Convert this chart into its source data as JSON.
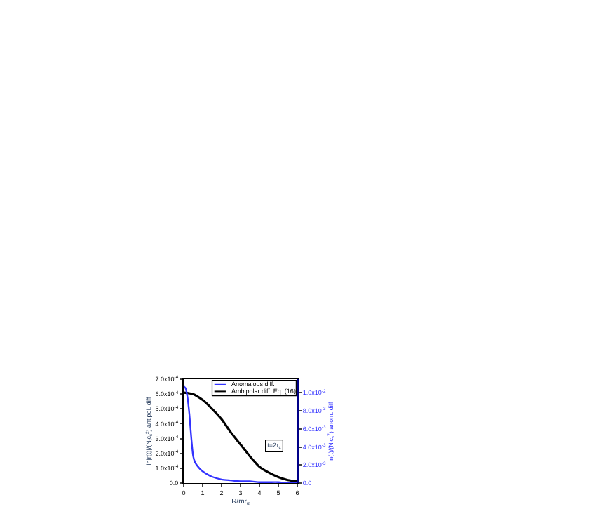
{
  "chart_data": {
    "type": "line",
    "xlabel": "R/mr$_{α}$",
    "ylabel": "ln|r(t)|/(N$_{t}$c$_{s}$$^{2}$) antipol. diff",
    "y2label": "n(t)/(N$_{t}$c$_{s}$$^{2}$) anom. diff",
    "x": [
      0,
      0.1,
      0.2,
      0.3,
      0.4,
      0.5,
      0.6,
      0.8,
      1.0,
      1.3,
      1.5,
      2,
      2.5,
      3,
      3.5,
      4,
      4.5,
      5,
      5.5,
      6
    ],
    "series": [
      {
        "name": "Anomalous diff.",
        "color": "#3333ff",
        "axis": "y2",
        "values": [
          0.0107,
          0.0105,
          0.0095,
          0.0076,
          0.005,
          0.003,
          0.0023,
          0.0017,
          0.0013,
          0.0009,
          0.0007,
          0.0004,
          0.0003,
          0.0002,
          0.0002,
          0.0001,
          0.0001,
          0.0001,
          0.0,
          0.0
        ]
      },
      {
        "name": "Ambipolar diff. Eq. (16)",
        "color": "#000000",
        "x": [
          0,
          0.5,
          1,
          1.5,
          2,
          2.5,
          3,
          3.5,
          4,
          4.5,
          5,
          5.5,
          6
        ],
        "values": [
          0.00061,
          0.0006,
          0.00056,
          0.0005,
          0.00043,
          0.00034,
          0.00026,
          0.00018,
          0.00011,
          7e-05,
          4e-05,
          2e-05,
          1e-05
        ]
      }
    ],
    "xlim": [
      0,
      6
    ],
    "xticks": [
      0,
      1,
      2,
      3,
      4,
      5,
      6
    ],
    "ylim": [
      0,
      0.0007
    ],
    "yticks": [
      {
        "value": 0,
        "label": "0.0"
      },
      {
        "value": 0.0001,
        "label": "1.0x10$^{-4}$"
      },
      {
        "value": 0.0002,
        "label": "2.0x10$^{-4}$"
      },
      {
        "value": 0.0003,
        "label": "3.0x10$^{-4}$"
      },
      {
        "value": 0.0004,
        "label": "4.0x10$^{-4}$"
      },
      {
        "value": 0.0005,
        "label": "5.0x10$^{-4}$"
      },
      {
        "value": 0.0006,
        "label": "6.0x10$^{-4}$"
      },
      {
        "value": 0.0007,
        "label": "7.0x10$^{-4}$"
      }
    ],
    "y2lim": [
      0,
      0.0115
    ],
    "y2ticks": [
      {
        "value": 0,
        "label": "0.0"
      },
      {
        "value": 0.002,
        "label": "2.0x10$^{-3}$"
      },
      {
        "value": 0.004,
        "label": "4.0x10$^{-3}$"
      },
      {
        "value": 0.006,
        "label": "6.0x10$^{-3}$"
      },
      {
        "value": 0.008,
        "label": "8.0x10$^{-3}$"
      },
      {
        "value": 0.01,
        "label": "1.0x10$^{-2}$"
      }
    ],
    "legend": "top right",
    "annotations": [
      "t=2τ$_{c}$"
    ]
  }
}
